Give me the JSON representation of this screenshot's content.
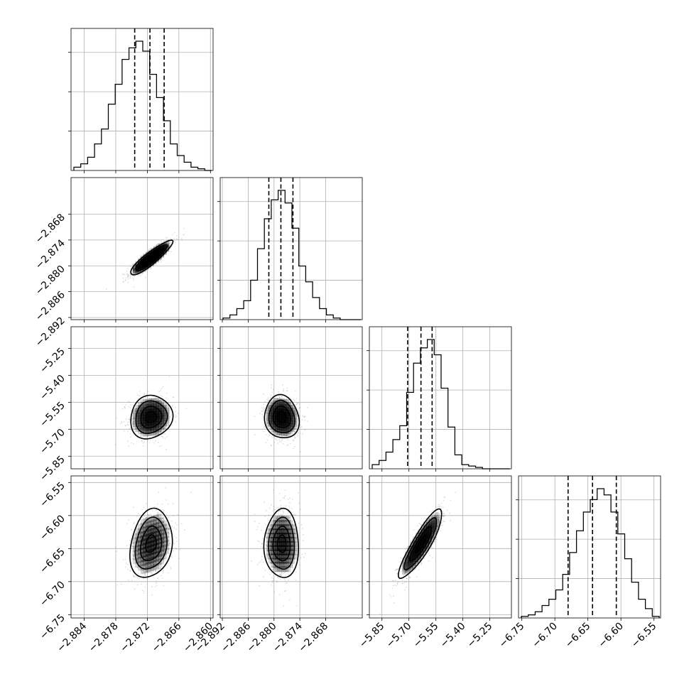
{
  "chart_data": {
    "type": "corner",
    "parameters": [
      {
        "range": [
          -2.8865,
          -2.8595
        ],
        "ticks": [
          -2.884,
          -2.878,
          -2.872,
          -2.866,
          -2.86
        ],
        "tick_labels": [
          "−2.884",
          "−2.878",
          "−2.872",
          "−2.866",
          "−2.860"
        ],
        "quantiles": [
          -2.8744,
          -2.8715,
          -2.8688
        ],
        "histogram": [
          2,
          4,
          8,
          16,
          25,
          40,
          52,
          67,
          74,
          78,
          72,
          58,
          44,
          30,
          16,
          9,
          5,
          2,
          1,
          0
        ]
      },
      {
        "range": [
          -2.8925,
          -2.8595
        ],
        "ticks": [
          -2.892,
          -2.886,
          -2.88,
          -2.874,
          -2.868
        ],
        "tick_labels": [
          "−2.892",
          "−2.886",
          "−2.880",
          "−2.874",
          "−2.868"
        ],
        "quantiles": [
          -2.8812,
          -2.8784,
          -2.8756
        ],
        "histogram": [
          1,
          3,
          7,
          12,
          25,
          45,
          64,
          76,
          82,
          74,
          58,
          34,
          24,
          14,
          7,
          3,
          1,
          0,
          0,
          0
        ]
      },
      {
        "range": [
          -5.92,
          -5.13
        ],
        "ticks": [
          -5.85,
          -5.7,
          -5.55,
          -5.4,
          -5.25
        ],
        "tick_labels": [
          "−5.85",
          "−5.70",
          "−5.55",
          "−5.40",
          "−5.25"
        ],
        "quantiles": [
          -5.707,
          -5.633,
          -5.571
        ],
        "histogram": [
          3,
          6,
          12,
          21,
          31,
          55,
          76,
          87,
          93,
          82,
          58,
          30,
          10,
          3,
          2,
          1,
          0,
          0,
          0,
          0
        ]
      },
      {
        "range": [
          -6.755,
          -6.54
        ],
        "ticks": [
          -6.75,
          -6.7,
          -6.65,
          -6.6,
          -6.55
        ],
        "tick_labels": [
          "−6.75",
          "−6.70",
          "−6.65",
          "−6.60",
          "−6.55"
        ],
        "quantiles": [
          -6.68,
          -6.643,
          -6.607
        ],
        "histogram": [
          1,
          2,
          4,
          8,
          12,
          18,
          28,
          42,
          56,
          68,
          76,
          83,
          79,
          68,
          54,
          38,
          23,
          12,
          6,
          1
        ]
      }
    ],
    "pairs": [
      {
        "row": 1,
        "col": 0,
        "mean": [
          -2.8713,
          -2.8782
        ],
        "sd": [
          0.002,
          0.002
        ],
        "rho": 0.9
      },
      {
        "row": 2,
        "col": 0,
        "mean": [
          -2.8713,
          -5.633
        ],
        "sd": [
          0.002,
          0.06
        ],
        "rho": 0.1
      },
      {
        "row": 2,
        "col": 1,
        "mean": [
          -2.8782,
          -5.633
        ],
        "sd": [
          0.002,
          0.06
        ],
        "rho": -0.1
      },
      {
        "row": 3,
        "col": 0,
        "mean": [
          -2.8713,
          -6.643
        ],
        "sd": [
          0.002,
          0.026
        ],
        "rho": 0.2
      },
      {
        "row": 3,
        "col": 1,
        "mean": [
          -2.8782,
          -6.643
        ],
        "sd": [
          0.002,
          0.026
        ],
        "rho": 0.0
      },
      {
        "row": 3,
        "col": 2,
        "mean": [
          -5.633,
          -6.643
        ],
        "sd": [
          0.06,
          0.026
        ],
        "rho": 0.88
      }
    ],
    "contour_levels": [
      0.118,
      0.393,
      0.675,
      0.865
    ],
    "grid": true
  }
}
